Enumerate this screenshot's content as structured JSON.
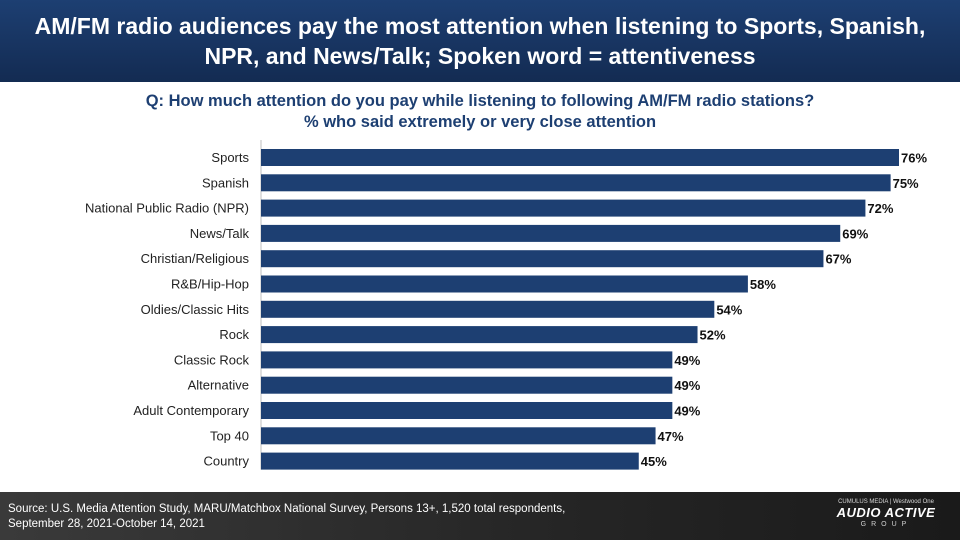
{
  "header": {
    "title": "AM/FM radio audiences pay the most attention when listening to Sports, Spanish, NPR, and News/Talk; Spoken word = attentiveness"
  },
  "question": {
    "line1": "Q: How much attention do you pay while listening to following AM/FM radio stations?",
    "line2": "% who said extremely or very close attention"
  },
  "footer": {
    "source_line1": "Source: U.S. Media Attention Study, MARU/Matchbox National Survey, Persons 13+, 1,520 total respondents,",
    "source_line2": "September 28, 2021-October 14, 2021",
    "logo_top": "CUMULUS MEDIA | Westwood One",
    "logo_main": "AUDIO ACTIVE",
    "logo_sub": "GROUP"
  },
  "colors": {
    "header_bg": "#1d3f72",
    "bar": "#1d3f72",
    "subtitle_text": "#1d3f72"
  },
  "chart_data": {
    "type": "bar",
    "orientation": "horizontal",
    "categories": [
      "Sports",
      "Spanish",
      "National Public Radio (NPR)",
      "News/Talk",
      "Christian/Religious",
      "R&B/Hip-Hop",
      "Oldies/Classic Hits",
      "Rock",
      "Classic Rock",
      "Alternative",
      "Adult Contemporary",
      "Top 40",
      "Country"
    ],
    "values": [
      76,
      75,
      72,
      69,
      67,
      58,
      54,
      52,
      49,
      49,
      49,
      47,
      45
    ],
    "value_labels": [
      "76%",
      "75%",
      "72%",
      "69%",
      "67%",
      "58%",
      "54%",
      "52%",
      "49%",
      "49%",
      "49%",
      "47%",
      "45%"
    ],
    "xlim": [
      0,
      76
    ],
    "grid": false,
    "legend": "none"
  }
}
